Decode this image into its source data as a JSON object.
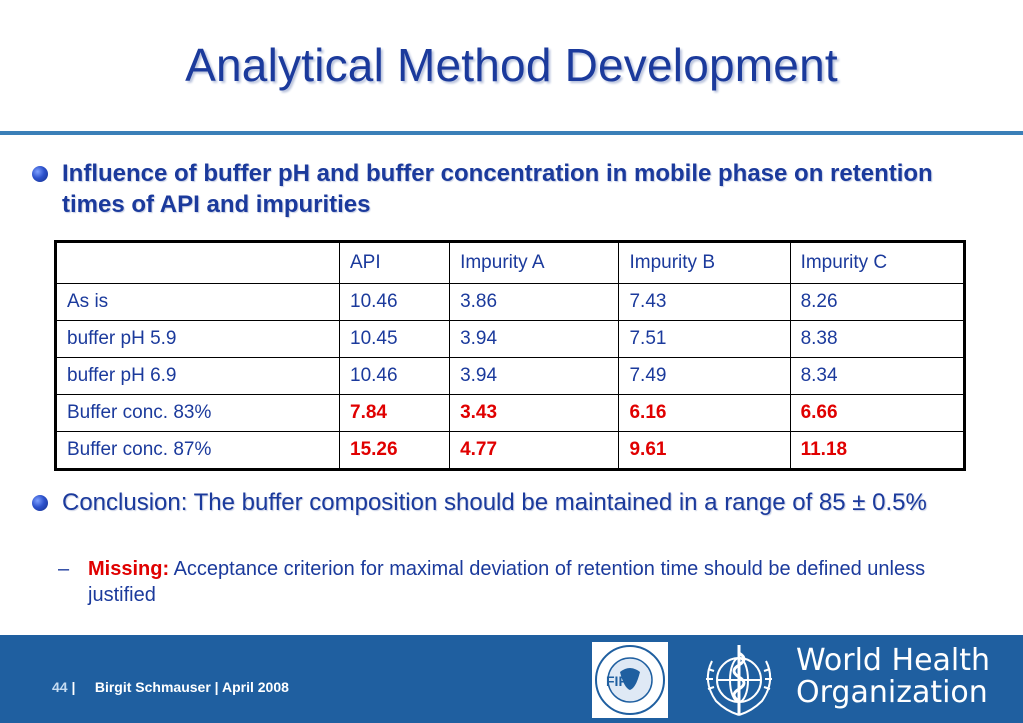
{
  "slide": {
    "title": "Analytical Method Development"
  },
  "bullet1": {
    "text": "Influence of buffer pH and buffer concentration in mobile phase on retention times of API and impurities"
  },
  "table": {
    "headers": [
      "",
      "API",
      "Impurity A",
      "Impurity B",
      "Impurity C"
    ],
    "rows": [
      {
        "label": "As is",
        "values": [
          "10.46",
          "3.86",
          "7.43",
          "8.26"
        ]
      },
      {
        "label": "buffer pH 5.9",
        "values": [
          "10.45",
          "3.94",
          "7.51",
          "8.38"
        ]
      },
      {
        "label": "buffer pH 6.9",
        "values": [
          "10.46",
          "3.94",
          "7.49",
          "8.34"
        ]
      },
      {
        "label": "Buffer conc. 83%",
        "values": [
          "7.84",
          "3.43",
          "6.16",
          "6.66"
        ]
      },
      {
        "label": "Buffer conc. 87%",
        "values": [
          "15.26",
          "4.77",
          "9.61",
          "11.18"
        ]
      }
    ],
    "highlight_color": "#e00000"
  },
  "bullet2": {
    "text": "Conclusion: The buffer composition should be maintained in a range of 85 ± 0.5%"
  },
  "subbullet": {
    "dash": "–",
    "label": "Missing:",
    "text": " Acceptance criterion for maximal deviation of retention time should be defined unless justified"
  },
  "footer": {
    "page_number": "44",
    "separator": "|",
    "author": "Birgit Schmauser",
    "date": "April 2008",
    "fip_logo_text": "FIP",
    "fip_ring_text": "INTERNATIONAL PHARMACEUTICAL FEDERATION",
    "who_line1": "World Health",
    "who_line2": "Organization",
    "bg_color": "#1f5fa0"
  }
}
